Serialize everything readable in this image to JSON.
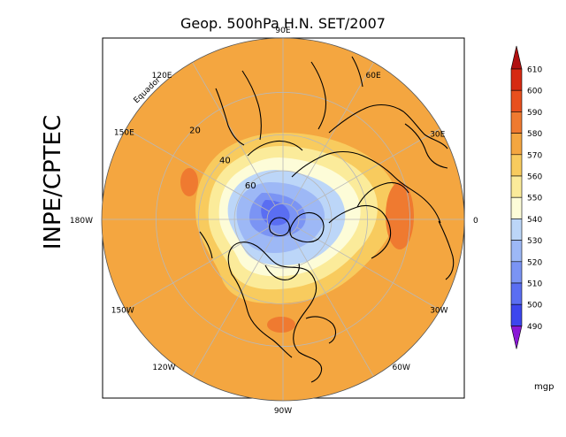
{
  "title": "Geop. 500hPa H.N. SET/2007",
  "side_label": "INPE/CPTEC",
  "equator_label": "Equador",
  "longitude_labels": [
    {
      "text": "90E",
      "lon": 90
    },
    {
      "text": "60E",
      "lon": 60
    },
    {
      "text": "30E",
      "lon": 30
    },
    {
      "text": "0",
      "lon": 0
    },
    {
      "text": "30W",
      "lon": -30
    },
    {
      "text": "60W",
      "lon": -60
    },
    {
      "text": "90W",
      "lon": -90
    },
    {
      "text": "120W",
      "lon": -120
    },
    {
      "text": "150W",
      "lon": -150
    },
    {
      "text": "180W",
      "lon": 180
    },
    {
      "text": "150E",
      "lon": 150
    },
    {
      "text": "120E",
      "lon": 120
    }
  ],
  "latitude_labels": [
    {
      "text": "20",
      "lat": 20
    },
    {
      "text": "40",
      "lat": 40
    },
    {
      "text": "60",
      "lat": 60
    }
  ],
  "colorbar": {
    "unit": "mgp",
    "levels": [
      "490",
      "500",
      "510",
      "520",
      "530",
      "540",
      "550",
      "560",
      "570",
      "580",
      "590",
      "600",
      "610"
    ],
    "colors": [
      "#2a2ae6",
      "#3c46ee",
      "#5a6ef2",
      "#7b94f4",
      "#9db8f6",
      "#bcd6f8",
      "#fdfcd8",
      "#fbeb9a",
      "#f8cb5e",
      "#f4a640",
      "#ef7a30",
      "#e8501e",
      "#d62a12",
      "#b01010"
    ],
    "low_arrow_color": "#8a18d6",
    "high_arrow_color": "#b01010"
  },
  "map_colors": {
    "ocean_background": "#f4a640",
    "coast": "#000000",
    "grid": "#b8b8b8"
  }
}
